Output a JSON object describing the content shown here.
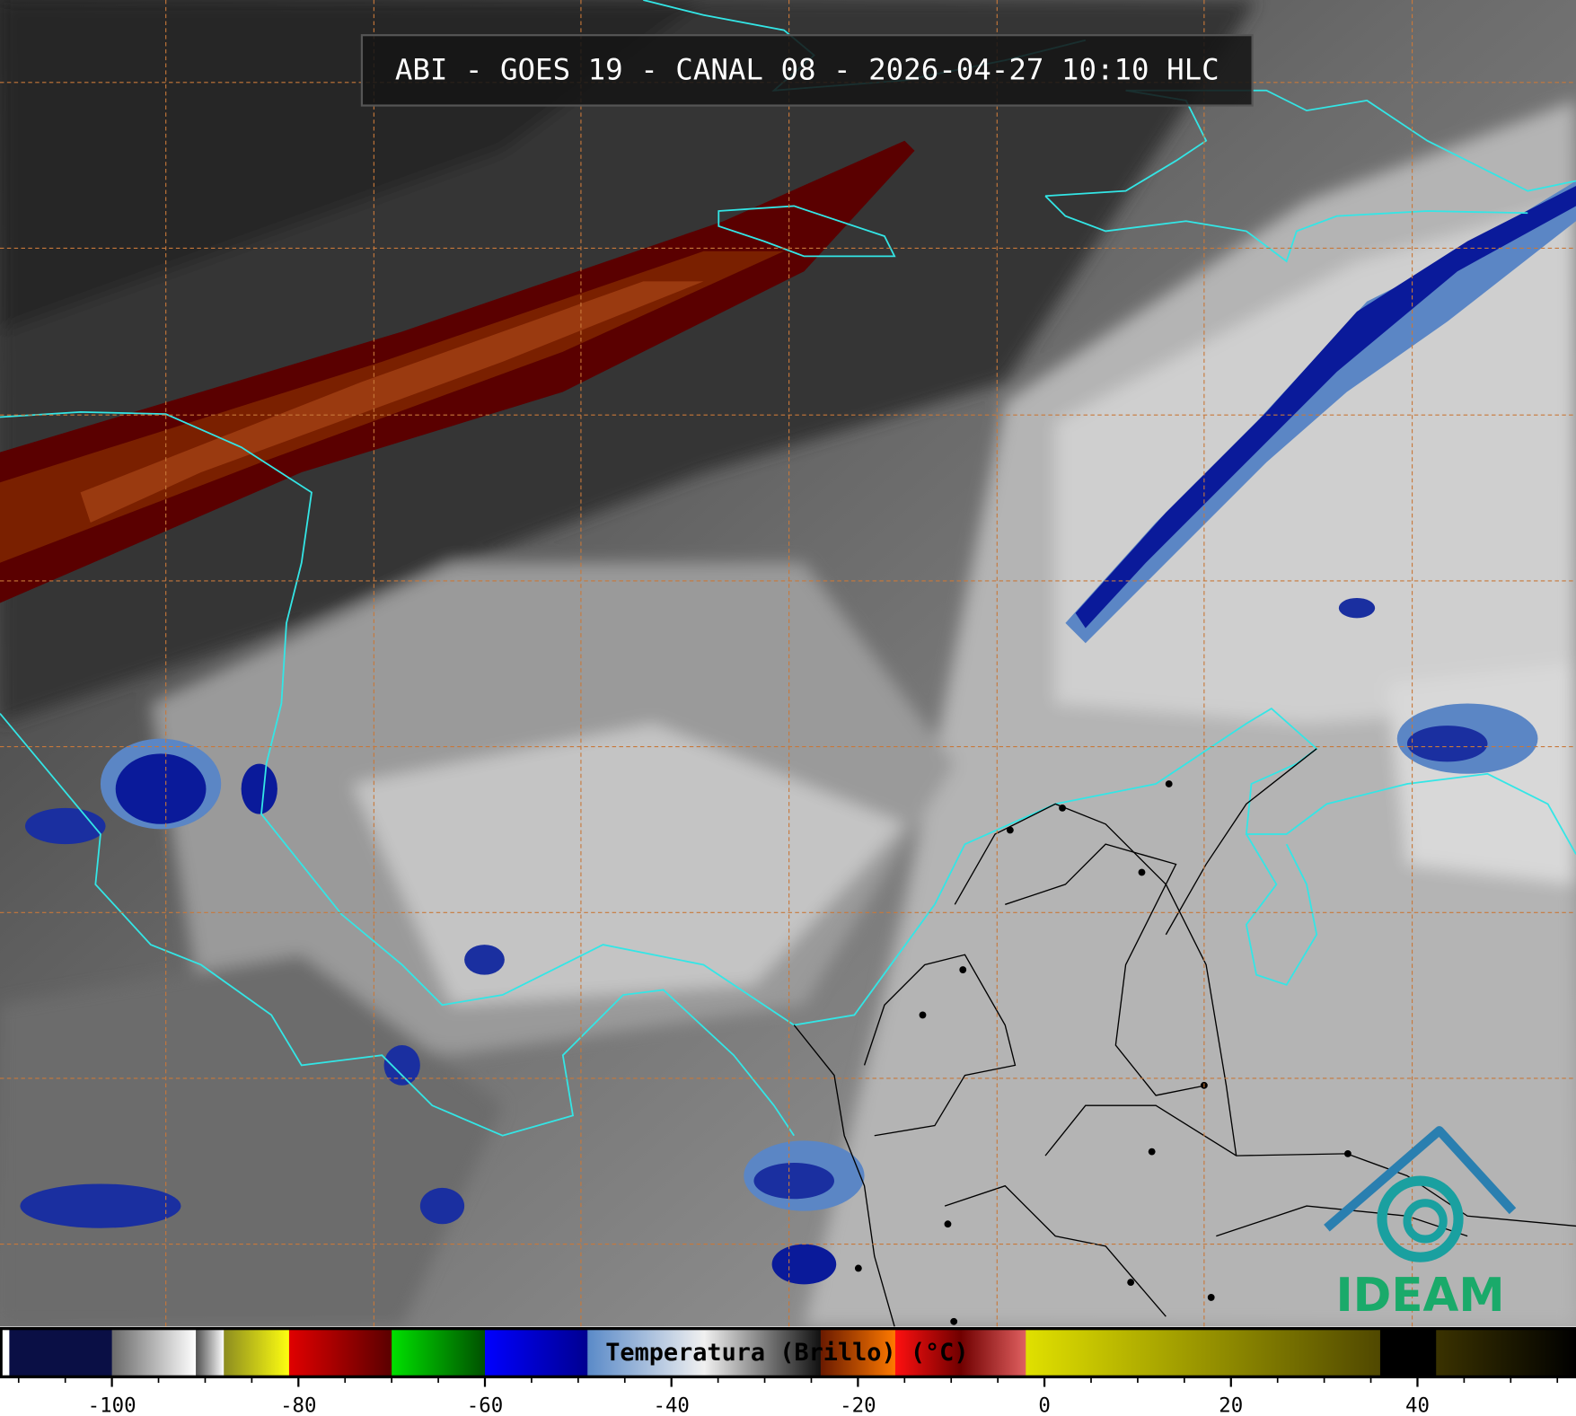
{
  "header": {
    "title": "ABI - GOES 19 - CANAL 08 - 2026-04-27 10:10 HLC"
  },
  "logo": {
    "text": "IDEAM"
  },
  "colorbar": {
    "label": "Temperatura (Brillo) (°C)",
    "lim": [
      -112,
      57
    ],
    "ticks": [
      -100,
      -80,
      -60,
      -40,
      -20,
      0,
      20,
      40
    ],
    "minor_ticks": [
      -110,
      -105,
      -95,
      -90,
      -85,
      -75,
      -70,
      -65,
      -55,
      -50,
      -45,
      -35,
      -30,
      -25,
      -15,
      -10,
      -5,
      5,
      10,
      15,
      25,
      30,
      35,
      45,
      50,
      55
    ],
    "segments": [
      {
        "from": -112,
        "to": -111,
        "colors": [
          "#ffffff",
          "#ffffff"
        ]
      },
      {
        "from": -111,
        "to": -100,
        "colors": [
          "#0a0f45",
          "#0a0f45"
        ]
      },
      {
        "from": -100,
        "to": -91,
        "colors": [
          "#6a6a6a",
          "#ffffff"
        ]
      },
      {
        "from": -91,
        "to": -88,
        "colors": [
          "#505050",
          "#ffffff"
        ]
      },
      {
        "from": -88,
        "to": -81,
        "colors": [
          "#8c8c20",
          "#ffff10"
        ]
      },
      {
        "from": -81,
        "to": -70,
        "colors": [
          "#e00000",
          "#5a0000"
        ]
      },
      {
        "from": -70,
        "to": -60,
        "colors": [
          "#00e000",
          "#005000"
        ]
      },
      {
        "from": -60,
        "to": -49,
        "colors": [
          "#0000ff",
          "#000090"
        ]
      },
      {
        "from": -49,
        "to": -24,
        "colors": [
          "#5a8ac8",
          "#f0f0f0",
          "#101010"
        ]
      },
      {
        "from": -24,
        "to": -16,
        "colors": [
          "#6a1a00",
          "#ff7a00"
        ]
      },
      {
        "from": -16,
        "to": -2,
        "colors": [
          "#ff1010",
          "#700000",
          "#e06060"
        ]
      },
      {
        "from": -2,
        "to": 36,
        "colors": [
          "#e0e000",
          "#504800"
        ]
      },
      {
        "from": 36,
        "to": 42,
        "colors": [
          "#000000",
          "#000000"
        ]
      },
      {
        "from": 42,
        "to": 57,
        "colors": [
          "#3a3200",
          "#000000"
        ]
      }
    ]
  }
}
